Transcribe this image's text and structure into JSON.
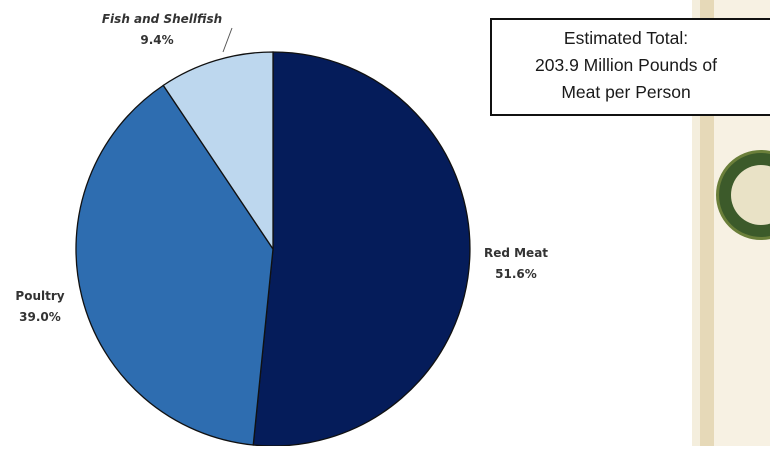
{
  "chart_data": {
    "type": "pie",
    "slices": [
      {
        "label": "Red Meat",
        "value": 51.6,
        "value_label": "51.6%",
        "color": "#051c5a"
      },
      {
        "label": "Poultry",
        "value": 39.0,
        "value_label": "39.0%",
        "color": "#2e6db0"
      },
      {
        "label": "Fish and Shellfish",
        "value": 9.4,
        "value_label": "9.4%",
        "color": "#bdd7ee"
      }
    ],
    "annotation": [
      "Estimated Total:",
      "203.9 Million Pounds of",
      "Meat per Person"
    ],
    "legend": "none"
  },
  "side_panel": {
    "seal_icon": "state-agency-seal-icon",
    "colors": {
      "panel": "#f4eedd",
      "seal": "#3c5a2a"
    }
  }
}
